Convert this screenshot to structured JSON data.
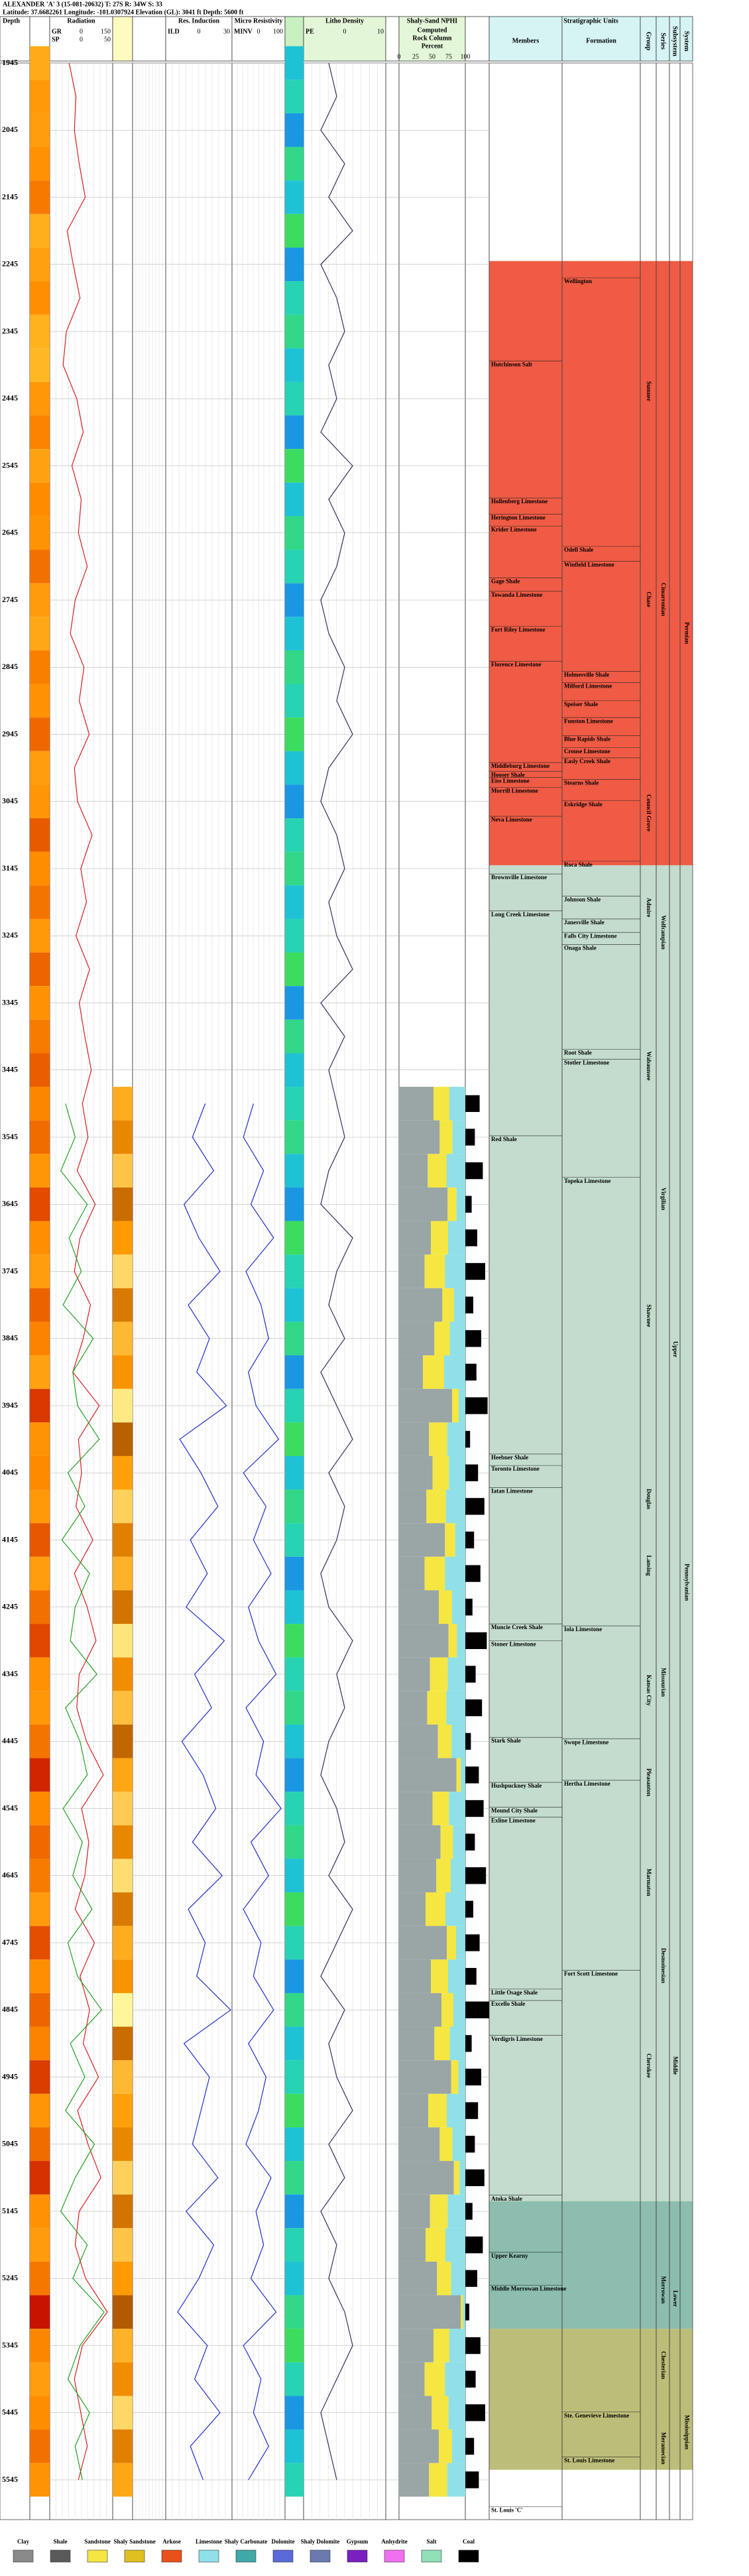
{
  "header": {
    "well": "ALEXANDER 'A' 3 (15-081-20632) T: 27S R: 34W S: 33",
    "location": "Latitude: 37.6682261 Longitude: -101.0307924 Elevation (GL): 3041 ft Depth: 5600 ft"
  },
  "depth_label": "Depth",
  "depth_ticks": [
    1945,
    2045,
    2145,
    2245,
    2345,
    2445,
    2545,
    2645,
    2745,
    2845,
    2945,
    3045,
    3145,
    3245,
    3345,
    3445,
    3545,
    3645,
    3745,
    3845,
    3945,
    4045,
    4145,
    4245,
    4345,
    4445,
    4545,
    4645,
    4745,
    4845,
    4945,
    5045,
    5145,
    5245,
    5345,
    5445,
    5545
  ],
  "depths": [
    1945,
    1995,
    2045,
    2095,
    2145,
    2195,
    2245,
    2295,
    2345,
    2395,
    2445,
    2495,
    2545,
    2595,
    2645,
    2695,
    2745,
    2795,
    2845,
    2895,
    2945,
    2995,
    3045,
    3095,
    3145,
    3195,
    3245,
    3295,
    3345,
    3395,
    3445,
    3495,
    3545,
    3595,
    3645,
    3695,
    3745,
    3795,
    3845,
    3895,
    3945,
    3995,
    4045,
    4095,
    4145,
    4195,
    4245,
    4295,
    4345,
    4395,
    4445,
    4495,
    4545,
    4595,
    4645,
    4695,
    4745,
    4795,
    4845,
    4895,
    4945,
    4995,
    5045,
    5095,
    5145,
    5195,
    5245,
    5295,
    5345,
    5395,
    5445,
    5495,
    5545
  ],
  "tracks": [
    {
      "title": "Radiation",
      "curves": [
        {
          "mnemonic": "GR",
          "color": "#d42020",
          "range": [
            0,
            150
          ],
          "values": [
            45,
            62,
            58,
            70,
            85,
            40,
            55,
            72,
            38,
            30,
            64,
            80,
            52,
            75,
            68,
            90,
            60,
            48,
            82,
            70,
            95,
            58,
            66,
            102,
            74,
            88,
            62,
            96,
            70,
            84,
            100,
            78,
            92,
            65,
            110,
            72,
            58,
            98,
            80,
            54,
            120,
            68,
            76,
            62,
            104,
            58,
            90,
            112,
            70,
            64,
            88,
            130,
            76,
            94,
            84,
            60,
            108,
            72,
            96,
            80,
            118,
            66,
            92,
            124,
            70,
            60,
            86,
            140,
            78,
            58,
            74,
            90,
            68
          ]
        },
        {
          "mnemonic": "SP",
          "color": "#22a022",
          "range": [
            0,
            50
          ],
          "values": [
            null,
            null,
            null,
            null,
            null,
            null,
            null,
            null,
            null,
            null,
            null,
            null,
            null,
            null,
            null,
            null,
            null,
            null,
            null,
            null,
            null,
            null,
            null,
            null,
            null,
            null,
            null,
            null,
            null,
            null,
            null,
            12,
            20,
            8,
            30,
            15,
            25,
            10,
            35,
            18,
            22,
            40,
            14,
            28,
            9,
            32,
            20,
            16,
            38,
            12,
            24,
            30,
            10,
            26,
            18,
            34,
            14,
            22,
            42,
            16,
            28,
            12,
            36,
            20,
            8,
            30,
            18,
            44,
            24,
            14,
            32,
            20,
            26
          ]
        }
      ]
    },
    {
      "title": "Res. Induction",
      "curves": [
        {
          "mnemonic": "ILD",
          "color": "#2030c8",
          "range": [
            0,
            30
          ],
          "values": [
            null,
            null,
            null,
            null,
            null,
            null,
            null,
            null,
            null,
            null,
            null,
            null,
            null,
            null,
            null,
            null,
            null,
            null,
            null,
            null,
            null,
            null,
            null,
            null,
            null,
            null,
            null,
            null,
            null,
            null,
            null,
            18,
            12,
            22,
            8,
            15,
            25,
            10,
            20,
            14,
            28,
            6,
            16,
            24,
            11,
            19,
            9,
            27,
            13,
            21,
            7,
            17,
            23,
            12,
            26,
            10,
            18,
            14,
            30,
            8,
            20,
            16,
            12,
            24,
            9,
            22,
            15,
            5,
            19,
            13,
            25,
            11,
            17
          ]
        }
      ]
    },
    {
      "title": "Micro Resistivity",
      "curves": [
        {
          "mnemonic": "MINV",
          "color": "#2030c8",
          "range": [
            0,
            100
          ],
          "values": [
            null,
            null,
            null,
            null,
            null,
            null,
            null,
            null,
            null,
            null,
            null,
            null,
            null,
            null,
            null,
            null,
            null,
            null,
            null,
            null,
            null,
            null,
            null,
            null,
            null,
            null,
            null,
            null,
            null,
            null,
            null,
            40,
            20,
            60,
            35,
            80,
            25,
            55,
            70,
            30,
            45,
            90,
            20,
            65,
            40,
            75,
            30,
            50,
            85,
            25,
            60,
            45,
            95,
            35,
            70,
            20,
            55,
            40,
            80,
            30,
            65,
            50,
            25,
            75,
            45,
            60,
            35,
            85,
            20,
            55,
            40,
            70,
            30
          ]
        }
      ]
    },
    {
      "title": "Litho Density",
      "curves": [
        {
          "mnemonic": "PE",
          "color": "#303060",
          "range": [
            0,
            10
          ],
          "values": [
            3,
            4,
            2,
            5,
            3,
            6,
            2,
            4,
            5,
            3,
            4,
            2,
            6,
            3,
            5,
            4,
            2,
            3,
            5,
            4,
            6,
            3,
            2,
            4,
            5,
            3,
            4,
            6,
            2,
            5,
            3,
            4,
            5,
            3,
            2,
            6,
            4,
            3,
            5,
            2,
            4,
            6,
            3,
            5,
            4,
            2,
            3,
            6,
            4,
            5,
            3,
            2,
            4,
            5,
            3,
            6,
            4,
            2,
            5,
            3,
            4,
            6,
            3,
            5,
            2,
            4,
            3,
            5,
            6,
            4,
            2,
            3,
            4
          ]
        }
      ]
    }
  ],
  "rock": {
    "title": "Shaly-Sand NPHI",
    "lines": [
      "Computed",
      "Rock Column",
      "Percent"
    ],
    "ticks": [
      0,
      25,
      50,
      75,
      100
    ]
  },
  "strat": {
    "title": "Stratigraphic Units",
    "headers": [
      "Members",
      "Formation",
      "Group",
      "Series",
      "Subsystem",
      "System"
    ],
    "zones": [
      {
        "top": 2240,
        "base": 3140,
        "color": "#ef5b45"
      },
      {
        "top": 3140,
        "base": 5130,
        "color": "#c3dccd"
      },
      {
        "top": 5130,
        "base": 5320,
        "color": "#8cbdae"
      },
      {
        "top": 5320,
        "base": 5530,
        "color": "#bcbd78"
      }
    ],
    "members": [
      {
        "name": "Hutchinson Salt",
        "depth": 2389
      },
      {
        "name": "Hollenberg Limestone",
        "depth": 2593
      },
      {
        "name": "Herington Limestone",
        "depth": 2617
      },
      {
        "name": "Krider Limestone",
        "depth": 2635
      },
      {
        "name": "Gage Shale",
        "depth": 2712
      },
      {
        "name": "Towanda Limestone",
        "depth": 2732
      },
      {
        "name": "Fort Riley Limestone",
        "depth": 2784
      },
      {
        "name": "Florence Limestone",
        "depth": 2836
      },
      {
        "name": "Middleburg Limestone",
        "depth": 2987
      },
      {
        "name": "Hooser Shale",
        "depth": 3000
      },
      {
        "name": "Eiss Limestone",
        "depth": 3009
      },
      {
        "name": "Morrill Limestone",
        "depth": 3024
      },
      {
        "name": "Neva Limestone",
        "depth": 3067
      },
      {
        "name": "Brownville Limestone",
        "depth": 3153
      },
      {
        "name": "Long Creek Limestone",
        "depth": 3208
      },
      {
        "name": "Red Shale",
        "depth": 3543
      },
      {
        "name": "Heebner Shale",
        "depth": 4017
      },
      {
        "name": "Toronto Limestone",
        "depth": 4034
      },
      {
        "name": "Iatan Limestone",
        "depth": 4067
      },
      {
        "name": "Muncie Creek Shale",
        "depth": 4270
      },
      {
        "name": "Stoner Limestone",
        "depth": 4295
      },
      {
        "name": "Stark Shale",
        "depth": 4439
      },
      {
        "name": "Hushpuckney Shale",
        "depth": 4506
      },
      {
        "name": "Mound City Shale",
        "depth": 4543
      },
      {
        "name": "Exline Limestone",
        "depth": 4558
      },
      {
        "name": "Little Osage Shale",
        "depth": 4814
      },
      {
        "name": "Excello Shale",
        "depth": 4831
      },
      {
        "name": "Verdigris Limestone",
        "depth": 4883
      },
      {
        "name": "Atoka Shale",
        "depth": 5121
      },
      {
        "name": "Upper Kearny",
        "depth": 5206
      },
      {
        "name": "Middle Morrowan Limestone",
        "depth": 5255
      },
      {
        "name": "St. Louis 'C'",
        "depth": 5585
      }
    ],
    "formations": [
      {
        "name": "Wellington",
        "depth": 2265
      },
      {
        "name": "Odell Shale",
        "depth": 2665
      },
      {
        "name": "Winfield Limestone",
        "depth": 2687
      },
      {
        "name": "Holmesville Shale",
        "depth": 2851
      },
      {
        "name": "Milford Limestone",
        "depth": 2868
      },
      {
        "name": "Speiser Shale",
        "depth": 2895
      },
      {
        "name": "Funston Limestone",
        "depth": 2920
      },
      {
        "name": "Blue Rapids Shale",
        "depth": 2947
      },
      {
        "name": "Crouse Limestone",
        "depth": 2965
      },
      {
        "name": "Easly Creek Shale",
        "depth": 2980
      },
      {
        "name": "Stearns Shale",
        "depth": 3012
      },
      {
        "name": "Eskridge Shale",
        "depth": 3044
      },
      {
        "name": "Roca Shale",
        "depth": 3134
      },
      {
        "name": "Johnson Shale",
        "depth": 3186
      },
      {
        "name": "Janesville Shale",
        "depth": 3220
      },
      {
        "name": "Falls City Limestone",
        "depth": 3240
      },
      {
        "name": "Onaga Shale",
        "depth": 3258
      },
      {
        "name": "Root Shale",
        "depth": 3414
      },
      {
        "name": "Stotler Limestone",
        "depth": 3429
      },
      {
        "name": "Topeka Limestone",
        "depth": 3605
      },
      {
        "name": "Iola Limestone",
        "depth": 4273
      },
      {
        "name": "Swope Limestone",
        "depth": 4441
      },
      {
        "name": "Hertha Limestone",
        "depth": 4503
      },
      {
        "name": "Fort Scott Limestone",
        "depth": 4786
      },
      {
        "name": "Ste. Genevieve Limestone",
        "depth": 5444
      },
      {
        "name": "St. Louis Limestone",
        "depth": 5511
      }
    ],
    "groups": [
      {
        "name": "Sumner",
        "depth": 2434
      },
      {
        "name": "Chase",
        "depth": 2744
      },
      {
        "name": "Council Grove",
        "depth": 3062
      },
      {
        "name": "Admire",
        "depth": 3203
      },
      {
        "name": "Wabaunsee",
        "depth": 3439
      },
      {
        "name": "Shawnee",
        "depth": 3811
      },
      {
        "name": "Douglas",
        "depth": 4084
      },
      {
        "name": "Lansing",
        "depth": 4183
      },
      {
        "name": "Kansas City",
        "depth": 4369
      },
      {
        "name": "Pleasanton",
        "depth": 4506
      },
      {
        "name": "Marmaton",
        "depth": 4655
      },
      {
        "name": "Cherokee",
        "depth": 4928
      }
    ],
    "series": [
      {
        "name": "Cimarronian",
        "depth": 2744
      },
      {
        "name": "Wolfcampian",
        "depth": 3240
      },
      {
        "name": "Virgilian",
        "depth": 3637
      },
      {
        "name": "Missourian",
        "depth": 4357
      },
      {
        "name": "Desmoinesian",
        "depth": 4779
      },
      {
        "name": "Morrowan",
        "depth": 5262
      },
      {
        "name": "Chesterian",
        "depth": 5374
      },
      {
        "name": "Meramecian",
        "depth": 5498
      }
    ],
    "subsystems": [
      {
        "name": "Upper",
        "depth": 3861
      },
      {
        "name": "Middle",
        "depth": 4928
      },
      {
        "name": "Lower",
        "depth": 5275
      }
    ],
    "systems": [
      {
        "name": "Permian",
        "depth": 2794
      },
      {
        "name": "Pennsylvanian",
        "depth": 4208
      },
      {
        "name": "Mississippian",
        "depth": 5474
      }
    ]
  },
  "legend": [
    {
      "name": "Clay",
      "color": "#8a8a8a"
    },
    {
      "name": "Shale",
      "color": "#5a5a5a"
    },
    {
      "name": "Sandstone",
      "color": "#f5e642"
    },
    {
      "name": "Shaly Sandstone",
      "color": "#e0c020"
    },
    {
      "name": "Arkose",
      "color": "#e8501c"
    },
    {
      "name": "Limestone",
      "color": "#8fe0e8"
    },
    {
      "name": "Shaly Carbonate",
      "color": "#3fa8a8"
    },
    {
      "name": "Dolomite",
      "color": "#5a6ad8"
    },
    {
      "name": "Shaly Dolomite",
      "color": "#6a7ab0"
    },
    {
      "name": "Gypsum",
      "color": "#7a20c0"
    },
    {
      "name": "Anhydrite",
      "color": "#f070f0"
    },
    {
      "name": "Salt",
      "color": "#90e0b8"
    },
    {
      "name": "Coal",
      "color": "#000000"
    }
  ]
}
